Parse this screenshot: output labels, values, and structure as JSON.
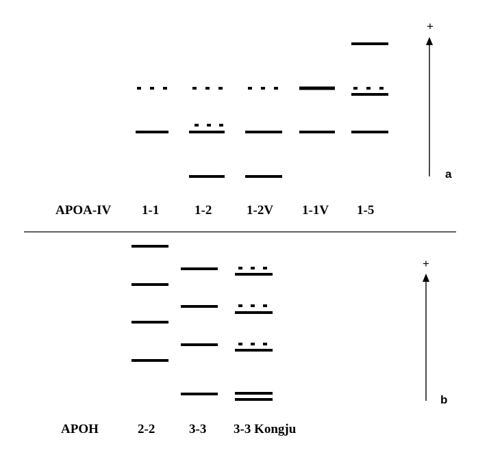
{
  "colors": {
    "background": "#ffffff",
    "ink": "#000000"
  },
  "panel_a": {
    "protein_label": "APOA-IV",
    "phenotypes": [
      "1-1",
      "1-2",
      "1-2V",
      "1-1V",
      "1-5"
    ],
    "panel_label": "a",
    "direction_symbol": "+",
    "band_pattern": {
      "1-1": [
        "dotted",
        "solid"
      ],
      "1-2": [
        "dotted",
        "dotted+solid",
        "solid"
      ],
      "1-2V": [
        "dotted",
        "solid",
        "solid"
      ],
      "1-1V": [
        "solid",
        "solid"
      ],
      "1-5": [
        "solid",
        "dotted+solid",
        "solid"
      ]
    }
  },
  "panel_b": {
    "protein_label": "APOH",
    "phenotypes": [
      "2-2",
      "3-3",
      "3-3 Kongju"
    ],
    "panel_label": "b",
    "direction_symbol": "+",
    "band_pattern": {
      "2-2": [
        "solid",
        "solid",
        "solid",
        "solid"
      ],
      "3-3": [
        "solid",
        "solid",
        "solid",
        "solid"
      ],
      "3-3 Kongju": [
        "dotted+solid",
        "dotted+solid",
        "dotted+solid",
        "double"
      ]
    }
  }
}
